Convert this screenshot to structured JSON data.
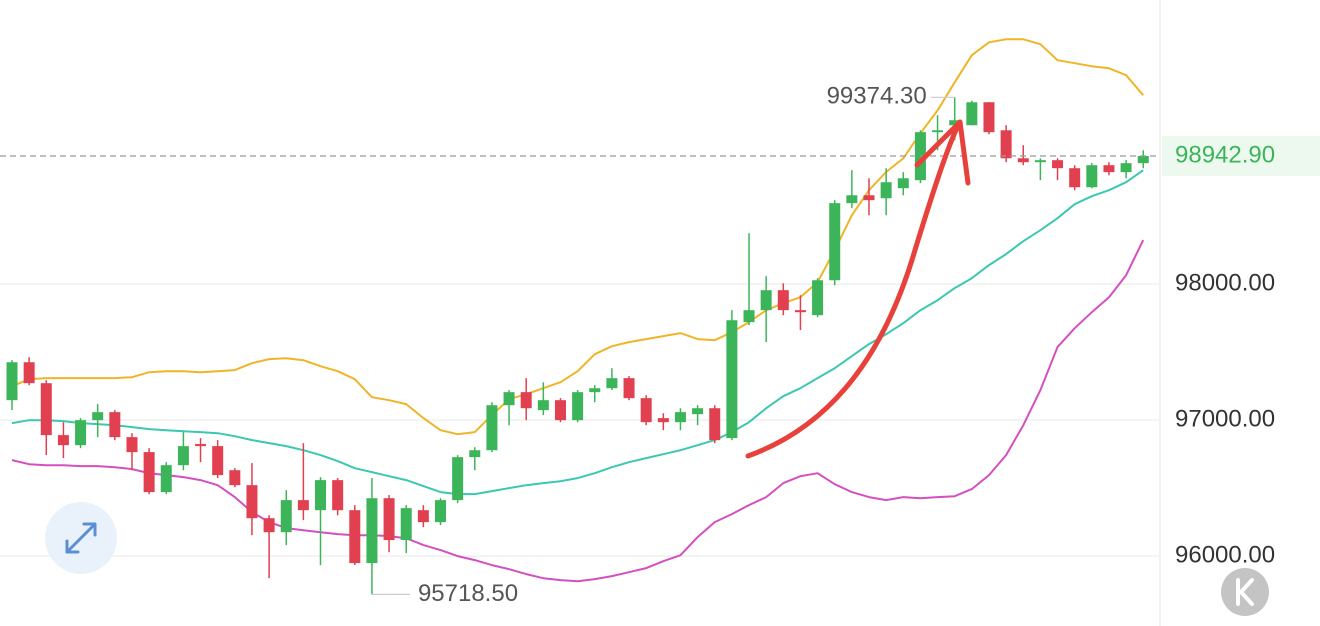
{
  "chart_data": {
    "type": "candlestick",
    "up_color": "#3cb55a",
    "down_color": "#e0404f",
    "open": [
      97147,
      97426,
      97272,
      96890,
      96816,
      97000,
      97059,
      96875,
      96765,
      96471,
      96669,
      96824,
      96809,
      96632,
      96522,
      96279,
      96176,
      96412,
      96338,
      96559,
      96338,
      95949,
      96426,
      96118,
      96338,
      96250,
      96412,
      96728,
      96779,
      97110,
      97206,
      97074,
      97147,
      97000,
      97206,
      97235,
      97309,
      97162,
      97015,
      96985,
      97044,
      97088,
      96868,
      97721,
      97809,
      97956,
      97809,
      97772,
      98029,
      98596,
      98654,
      98632,
      98706,
      98765,
      99118,
      99169,
      99169,
      99338,
      99132,
      98926,
      98897,
      98912,
      98853,
      98713,
      98875,
      98824,
      98890
    ],
    "high": [
      97441,
      97463,
      97294,
      96985,
      97015,
      97118,
      97074,
      96904,
      96794,
      96691,
      96912,
      96868,
      96853,
      96647,
      96684,
      96301,
      96485,
      96831,
      96581,
      96574,
      96375,
      96574,
      96449,
      96375,
      96375,
      96426,
      96743,
      96801,
      97132,
      97221,
      97309,
      97279,
      97162,
      97221,
      97257,
      97382,
      97324,
      97184,
      97051,
      97088,
      97110,
      97110,
      97809,
      98375,
      98059,
      98007,
      97919,
      98044,
      98618,
      98838,
      98779,
      98853,
      98824,
      99132,
      99243,
      99374.3,
      99350,
      99340,
      99169,
      99022,
      98926,
      98926,
      98875,
      98890,
      98897,
      98912,
      98985
    ],
    "low": [
      97074,
      97257,
      96743,
      96721,
      96794,
      96875,
      96853,
      96632,
      96456,
      96456,
      96632,
      96691,
      96574,
      96507,
      96154,
      95838,
      96081,
      96265,
      95934,
      96301,
      95934,
      95718.5,
      96029,
      96022,
      96213,
      96228,
      96390,
      96632,
      96765,
      96963,
      97000,
      97037,
      96985,
      96985,
      97132,
      97221,
      97147,
      96963,
      96926,
      96926,
      96963,
      96831,
      96853,
      97699,
      97574,
      97772,
      97662,
      97757,
      97993,
      98559,
      98507,
      98507,
      98654,
      98743,
      98985,
      99059,
      99169,
      99103,
      98897,
      98875,
      98765,
      98765,
      98691,
      98706,
      98801,
      98779,
      98853
    ],
    "close": [
      97426,
      97272,
      96890,
      96816,
      97000,
      97059,
      96875,
      96765,
      96471,
      96669,
      96809,
      96809,
      96596,
      96522,
      96279,
      96176,
      96412,
      96338,
      96559,
      96338,
      95949,
      96426,
      96118,
      96353,
      96250,
      96412,
      96728,
      96779,
      97110,
      97206,
      97088,
      97147,
      97000,
      97206,
      97235,
      97309,
      97162,
      96985,
      96985,
      97059,
      97088,
      96853,
      97735,
      97809,
      97956,
      97809,
      97794,
      98029,
      98596,
      98654,
      98618,
      98750,
      98779,
      99118,
      99132,
      99206,
      99338,
      99118,
      98926,
      98897,
      98912,
      98853,
      98713,
      98875,
      98824,
      98890,
      98942.9
    ],
    "lines": [
      {
        "color": "#f0b429",
        "values": [
          97250,
          97301,
          97309,
          97309,
          97309,
          97309,
          97309,
          97316,
          97353,
          97360,
          97360,
          97353,
          97360,
          97368,
          97419,
          97449,
          97456,
          97441,
          97397,
          97360,
          97301,
          97169,
          97147,
          97118,
          97015,
          96926,
          96897,
          96912,
          97037,
          97154,
          97191,
          97235,
          97279,
          97360,
          97485,
          97544,
          97574,
          97596,
          97618,
          97640,
          97596,
          97588,
          97647,
          97721,
          97809,
          97860,
          97904,
          98015,
          98250,
          98507,
          98691,
          98824,
          98926,
          99110,
          99279,
          99485,
          99684,
          99779,
          99801,
          99801,
          99765,
          99647,
          99625,
          99603,
          99588,
          99537,
          99390
        ]
      },
      {
        "color": "#3cc8b0",
        "values": [
          96978,
          97000,
          97000,
          96993,
          96978,
          96971,
          96963,
          96949,
          96934,
          96926,
          96919,
          96912,
          96904,
          96882,
          96853,
          96831,
          96809,
          96779,
          96743,
          96699,
          96647,
          96618,
          96588,
          96559,
          96515,
          96471,
          96456,
          96456,
          96478,
          96500,
          96522,
          96537,
          96551,
          96574,
          96610,
          96654,
          96691,
          96721,
          96750,
          96779,
          96816,
          96853,
          96912,
          96985,
          97088,
          97176,
          97235,
          97309,
          97382,
          97471,
          97559,
          97632,
          97713,
          97809,
          97882,
          97971,
          98044,
          98140,
          98221,
          98316,
          98397,
          98485,
          98588,
          98647,
          98691,
          98750,
          98838
        ]
      },
      {
        "color": "#d44fc0",
        "values": [
          96706,
          96676,
          96669,
          96669,
          96662,
          96662,
          96654,
          96640,
          96610,
          96596,
          96581,
          96559,
          96522,
          96434,
          96324,
          96250,
          96206,
          96191,
          96176,
          96162,
          96154,
          96154,
          96147,
          96132,
          96081,
          96044,
          96000,
          95971,
          95934,
          95904,
          95868,
          95838,
          95824,
          95816,
          95831,
          95853,
          95882,
          95912,
          95963,
          96007,
          96140,
          96250,
          96309,
          96375,
          96434,
          96537,
          96588,
          96610,
          96529,
          96471,
          96434,
          96412,
          96434,
          96426,
          96434,
          96441,
          96493,
          96596,
          96743,
          96963,
          97221,
          97537,
          97676,
          97794,
          97904,
          98066,
          98324
        ]
      }
    ],
    "ylim": [
      95545,
      100090
    ],
    "yticks": [
      {
        "value": 96000,
        "label": "96000.00"
      },
      {
        "value": 97000,
        "label": "97000.00"
      },
      {
        "value": 98000,
        "label": "98000.00"
      }
    ],
    "grid": true,
    "last_price": {
      "value": 98942.9,
      "label": "98942.90"
    },
    "max_label": {
      "value": 99374.3,
      "label": "99374.30"
    },
    "min_label": {
      "value": 95718.5,
      "label": "95718.50"
    }
  }
}
